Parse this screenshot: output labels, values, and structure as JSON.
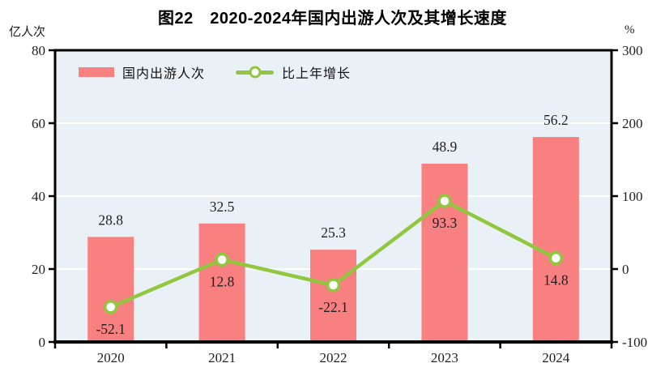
{
  "title": "图22　2020-2024年国内出游人次及其增长速度",
  "left_axis_unit": "亿人次",
  "right_axis_unit": "%",
  "legend": [
    {
      "label": "国内出游人次",
      "swatch": "bar"
    },
    {
      "label": "比上年增长",
      "swatch": "line"
    }
  ],
  "colors": {
    "bar": "#f98080",
    "line": "#90c73e",
    "marker_fill": "#ffffff",
    "plot_background": "#e9f1f6",
    "gridline": "#ffffff",
    "axis": "#000000",
    "text": "#1f1f1f"
  },
  "chart_data": {
    "type": "bar",
    "subtype": "bar+line combo, dual axis",
    "title": "图22　2020-2024年国内出游人次及其增长速度",
    "categories": [
      "2020",
      "2021",
      "2022",
      "2023",
      "2024"
    ],
    "series": [
      {
        "name": "国内出游人次",
        "type": "bar",
        "axis": "left",
        "values": [
          28.8,
          32.5,
          25.3,
          48.9,
          56.2
        ]
      },
      {
        "name": "比上年增长",
        "type": "line",
        "axis": "right",
        "values": [
          -52.1,
          12.8,
          -22.1,
          93.3,
          14.8
        ]
      }
    ],
    "left_axis": {
      "label": "亿人次",
      "min": 0,
      "max": 80,
      "ticks": [
        0,
        20,
        40,
        60,
        80
      ]
    },
    "right_axis": {
      "label": "%",
      "min": -100,
      "max": 300,
      "ticks": [
        -100,
        0,
        100,
        200,
        300
      ]
    },
    "grid": true,
    "legend_position": "top-left-inside",
    "data_labels": true
  }
}
